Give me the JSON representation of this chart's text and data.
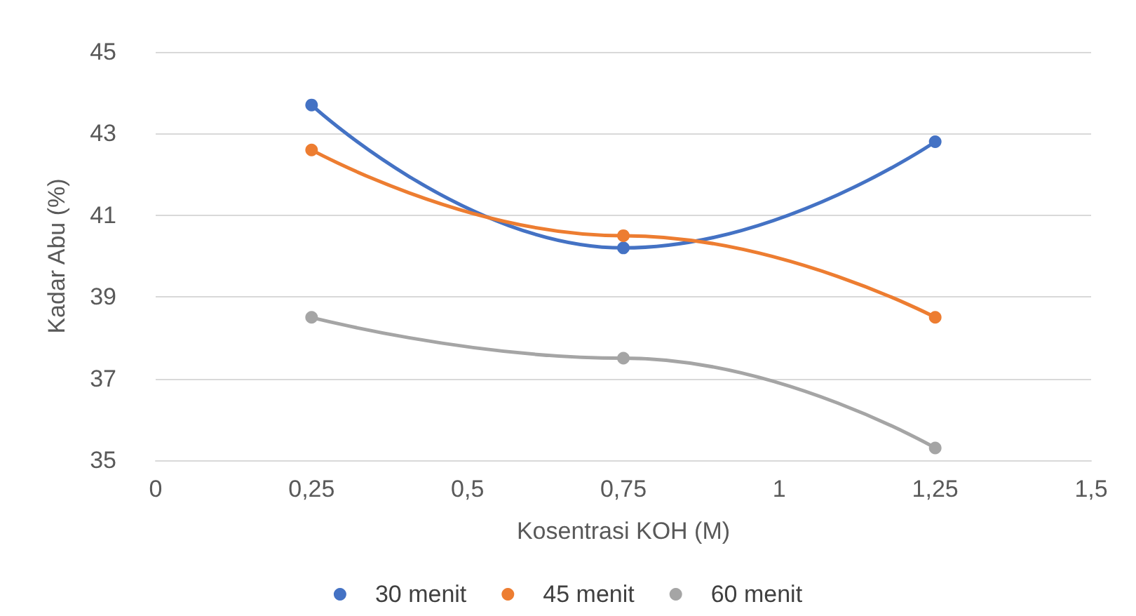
{
  "chart_data": {
    "type": "line",
    "xlabel": "Kosentrasi KOH (M)",
    "ylabel": "Kadar Abu (%)",
    "x": [
      0.25,
      0.75,
      1.25
    ],
    "series": [
      {
        "name": "30 menit",
        "color": "#4472c4",
        "values": [
          43.7,
          40.2,
          42.8
        ]
      },
      {
        "name": "45 menit",
        "color": "#ed7d31",
        "values": [
          42.6,
          40.5,
          38.5
        ]
      },
      {
        "name": "60 menit",
        "color": "#a5a5a5",
        "values": [
          38.5,
          37.5,
          35.3
        ]
      }
    ],
    "xlim": [
      0,
      1.5
    ],
    "xticks": [
      0,
      {
        "value": 0.25,
        "label": "0,25"
      },
      {
        "value": 0.5,
        "label": "0,5"
      },
      {
        "value": 0.75,
        "label": "0,75"
      },
      1,
      {
        "value": 1.25,
        "label": "1,25"
      },
      {
        "value": 1.5,
        "label": "1,5"
      }
    ],
    "ylim": [
      35,
      45
    ],
    "yticks": [
      35,
      37,
      39,
      41,
      43,
      45
    ],
    "grid": "y",
    "legend": "bottom",
    "marker": "circle",
    "line_style": "solid"
  }
}
